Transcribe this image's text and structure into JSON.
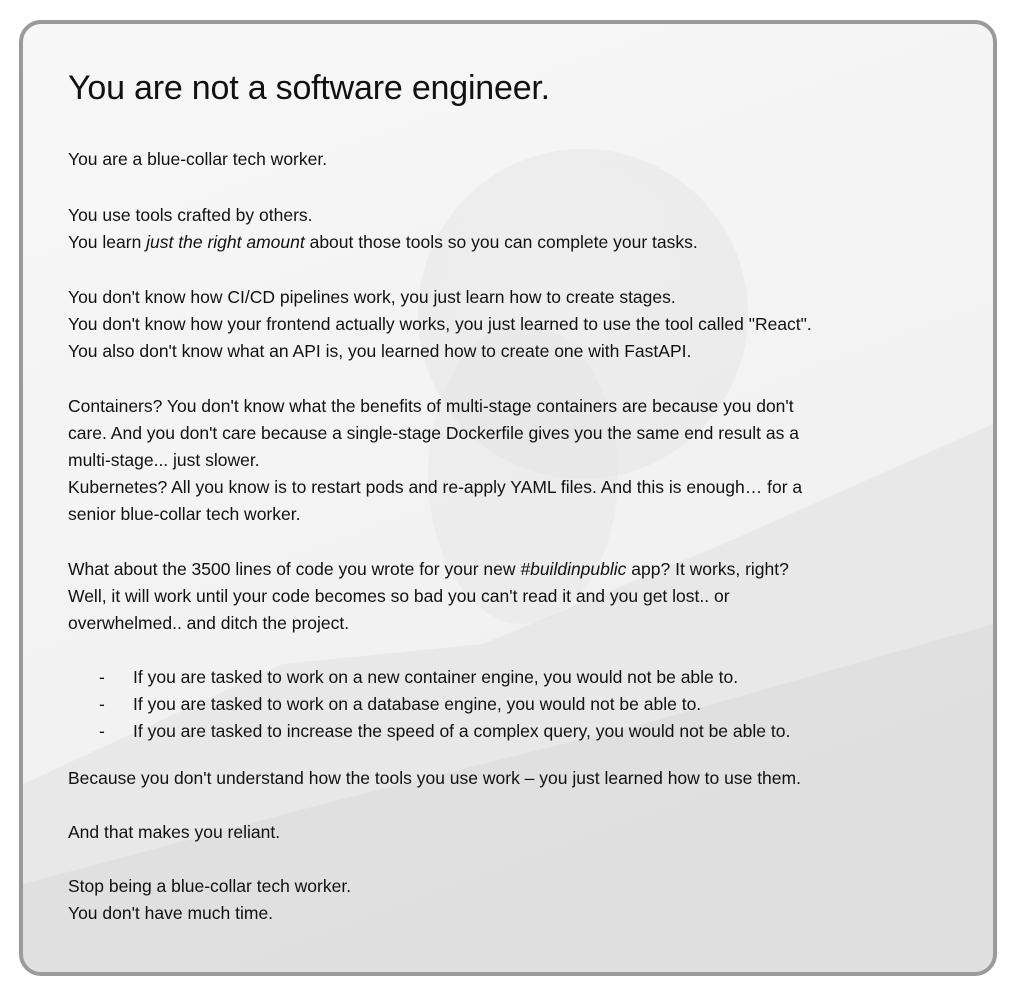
{
  "title": "You are not a software engineer.",
  "paragraphs": {
    "intro": "You are a blue-collar tech worker.",
    "tools_1": "You use tools crafted by others.",
    "tools_2_pre": "You learn ",
    "tools_2_em": "just the right amount",
    "tools_2_post": " about those tools so you can complete your tasks.",
    "dk_1": "You don't know how CI/CD pipelines work, you just learn how to create stages.",
    "dk_2": "You don't know how your frontend actually works, you just learned to use the tool called \"React\".",
    "dk_3": "You also don't know what an API is, you learned how to create one with FastAPI.",
    "containers_1": "Containers? You don't know what the benefits of multi-stage containers are because you don't",
    "containers_2": "care. And you don't care because a single-stage Dockerfile gives you the same end result as a",
    "containers_3": "multi-stage... just slower.",
    "k8s_1": "Kubernetes? All you know is to restart pods and re-apply YAML files. And this is enough… for a",
    "k8s_2": "senior blue-collar tech worker.",
    "code_1_pre": "What about the 3500 lines of code you wrote for your new ",
    "code_1_em": "#buildinpublic",
    "code_1_post": " app? It works, right?",
    "code_2": "Well, it will work until your code becomes so bad you can't read it and you get lost.. or",
    "code_3": "overwhelmed.. and ditch the project.",
    "because": "Because you don't understand how the tools you use work – you just learned how to use them.",
    "reliant": "And that makes you reliant.",
    "stop": "Stop being a blue-collar tech worker.",
    "time": "You don't have much time."
  },
  "bullets": [
    {
      "dash": "-",
      "text": "If you are tasked to work on a new container engine, you would not be able to."
    },
    {
      "dash": "-",
      "text": "If you are tasked to work on a database engine, you would not be able to."
    },
    {
      "dash": "-",
      "text": "If you are tasked to increase the speed of a complex query, you would not be able to."
    }
  ],
  "colors": {
    "text": "#111111",
    "border": "#9a9a9a",
    "background": "#f5f5f5"
  }
}
